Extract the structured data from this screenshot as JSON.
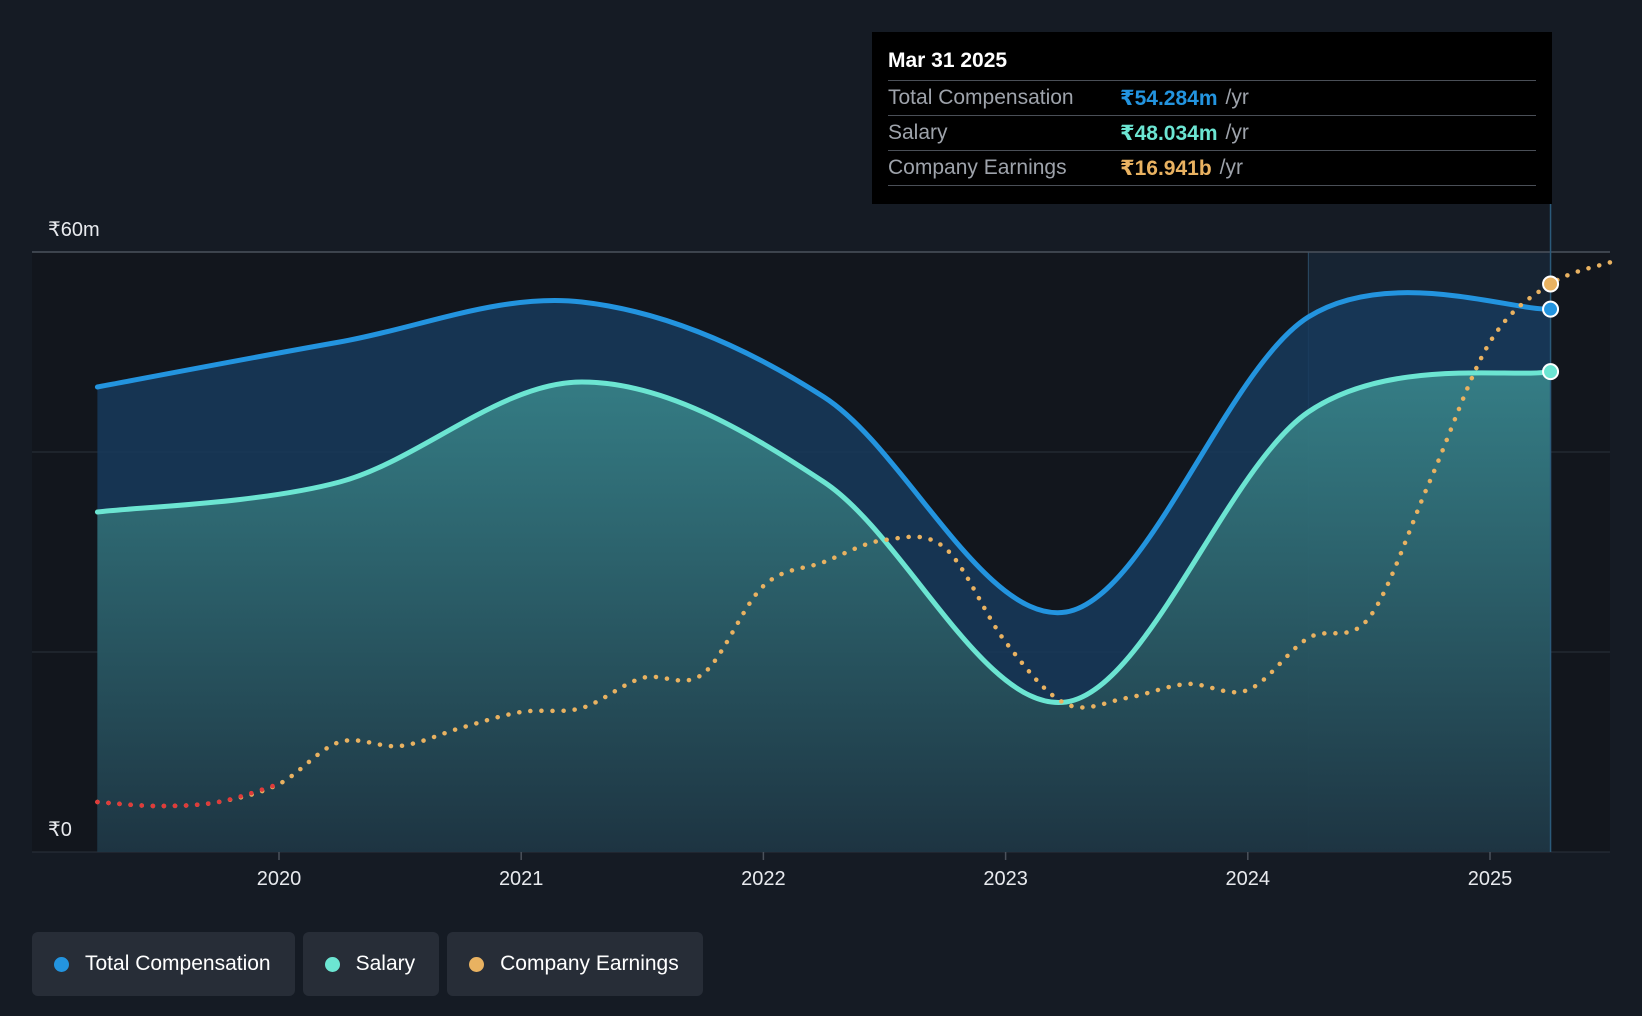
{
  "chart_data": {
    "type": "line",
    "y_axis": {
      "top_label": "₹60m",
      "bottom_label": "₹0",
      "ylim": [
        0,
        60
      ],
      "unit": "₹m",
      "grid": true
    },
    "x_axis": {
      "ticks": [
        "2020",
        "2021",
        "2022",
        "2023",
        "2024",
        "2025"
      ],
      "range": [
        2019.25,
        2025.5
      ]
    },
    "series": [
      {
        "name": "Total Compensation",
        "color": "#2394df",
        "style": "solid-area",
        "points": [
          [
            2019.25,
            46.5
          ],
          [
            2020.25,
            51.0
          ],
          [
            2021.25,
            55.0
          ],
          [
            2022.25,
            45.5
          ],
          [
            2023.25,
            24.0
          ],
          [
            2024.25,
            53.5
          ],
          [
            2025.25,
            54.284
          ]
        ]
      },
      {
        "name": "Salary",
        "color": "#6ce5d2",
        "style": "solid-area",
        "points": [
          [
            2019.25,
            34.0
          ],
          [
            2020.25,
            37.0
          ],
          [
            2021.25,
            47.0
          ],
          [
            2022.25,
            37.0
          ],
          [
            2023.25,
            15.0
          ],
          [
            2024.25,
            44.0
          ],
          [
            2025.25,
            48.034
          ]
        ]
      },
      {
        "name": "Company Earnings",
        "color": "#e9b261",
        "negative_color": "#e03a3a",
        "style": "dotted",
        "points": [
          [
            2019.25,
            5.0
          ],
          [
            2019.5,
            4.6
          ],
          [
            2019.75,
            5.0
          ],
          [
            2020.0,
            6.8
          ],
          [
            2020.25,
            11.0
          ],
          [
            2020.5,
            10.6
          ],
          [
            2020.75,
            12.4
          ],
          [
            2021.0,
            14.0
          ],
          [
            2021.25,
            14.4
          ],
          [
            2021.5,
            17.4
          ],
          [
            2021.75,
            17.8
          ],
          [
            2022.0,
            26.6
          ],
          [
            2022.25,
            29.0
          ],
          [
            2022.5,
            31.2
          ],
          [
            2022.75,
            30.4
          ],
          [
            2023.0,
            21.0
          ],
          [
            2023.25,
            14.8
          ],
          [
            2023.5,
            15.4
          ],
          [
            2023.75,
            16.8
          ],
          [
            2024.0,
            16.2
          ],
          [
            2024.25,
            21.4
          ],
          [
            2024.5,
            23.4
          ],
          [
            2024.75,
            37.0
          ],
          [
            2025.0,
            51.0
          ],
          [
            2025.25,
            56.8
          ],
          [
            2025.5,
            59.0
          ]
        ]
      }
    ],
    "highlight_from": 2024.25,
    "cursor_x": 2025.25
  },
  "tooltip": {
    "date": "Mar 31 2025",
    "rows": [
      {
        "name": "Total Compensation",
        "value": "₹54.284m",
        "unit": "/yr",
        "color": "#2394df"
      },
      {
        "name": "Salary",
        "value": "₹48.034m",
        "unit": "/yr",
        "color": "#6ce5d2"
      },
      {
        "name": "Company Earnings",
        "value": "₹16.941b",
        "unit": "/yr",
        "color": "#e9b261"
      }
    ]
  },
  "legend": [
    {
      "label": "Total Compensation",
      "color": "#2394df"
    },
    {
      "label": "Salary",
      "color": "#6ce5d2"
    },
    {
      "label": "Company Earnings",
      "color": "#e9b261"
    }
  ]
}
